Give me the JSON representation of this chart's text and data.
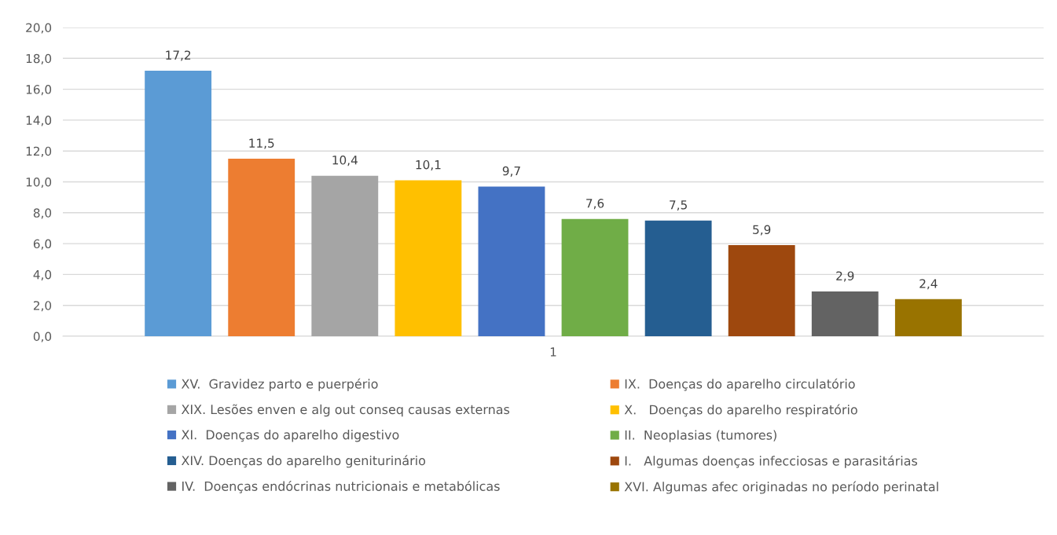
{
  "chart_data": {
    "type": "bar",
    "categories": [
      "1"
    ],
    "series": [
      {
        "name": "XV.  Gravidez parto e puerpério",
        "color": "#5b9bd5",
        "values": [
          17.2
        ],
        "value_labels": [
          "17,2"
        ]
      },
      {
        "name": "IX.  Doenças do aparelho circulatório",
        "color": "#ed7d31",
        "values": [
          11.5
        ],
        "value_labels": [
          "11,5"
        ]
      },
      {
        "name": "XIX. Lesões enven e alg out conseq causas externas",
        "color": "#a5a5a5",
        "values": [
          10.4
        ],
        "value_labels": [
          "10,4"
        ]
      },
      {
        "name": "X.   Doenças do aparelho respiratório",
        "color": "#ffc000",
        "values": [
          10.1
        ],
        "value_labels": [
          "10,1"
        ]
      },
      {
        "name": "XI.  Doenças do aparelho digestivo",
        "color": "#4472c4",
        "values": [
          9.7
        ],
        "value_labels": [
          "9,7"
        ]
      },
      {
        "name": "II.  Neoplasias (tumores)",
        "color": "#70ad47",
        "values": [
          7.6
        ],
        "value_labels": [
          "7,6"
        ]
      },
      {
        "name": "XIV. Doenças do aparelho geniturinário",
        "color": "#255e91",
        "values": [
          7.5
        ],
        "value_labels": [
          "7,5"
        ]
      },
      {
        "name": "I.   Algumas doenças infecciosas e parasitárias",
        "color": "#9e480e",
        "values": [
          5.9
        ],
        "value_labels": [
          "5,9"
        ]
      },
      {
        "name": "IV.  Doenças endócrinas nutricionais e metabólicas",
        "color": "#636363",
        "values": [
          2.9
        ],
        "value_labels": [
          "2,9"
        ]
      },
      {
        "name": "XVI. Algumas afec originadas no período perinatal",
        "color": "#997300",
        "values": [
          2.4
        ],
        "value_labels": [
          "2,4"
        ]
      }
    ],
    "ylim": [
      0,
      20
    ],
    "yticks": [
      {
        "value": 0,
        "label": "0,0"
      },
      {
        "value": 2,
        "label": "2,0"
      },
      {
        "value": 4,
        "label": "4,0"
      },
      {
        "value": 6,
        "label": "6,0"
      },
      {
        "value": 8,
        "label": "8,0"
      },
      {
        "value": 10,
        "label": "10,0"
      },
      {
        "value": 12,
        "label": "12,0"
      },
      {
        "value": 14,
        "label": "14,0"
      },
      {
        "value": 16,
        "label": "16,0"
      },
      {
        "value": 18,
        "label": "18,0"
      },
      {
        "value": 20,
        "label": "20,0"
      }
    ],
    "grid": "y",
    "legend": "bottom"
  }
}
